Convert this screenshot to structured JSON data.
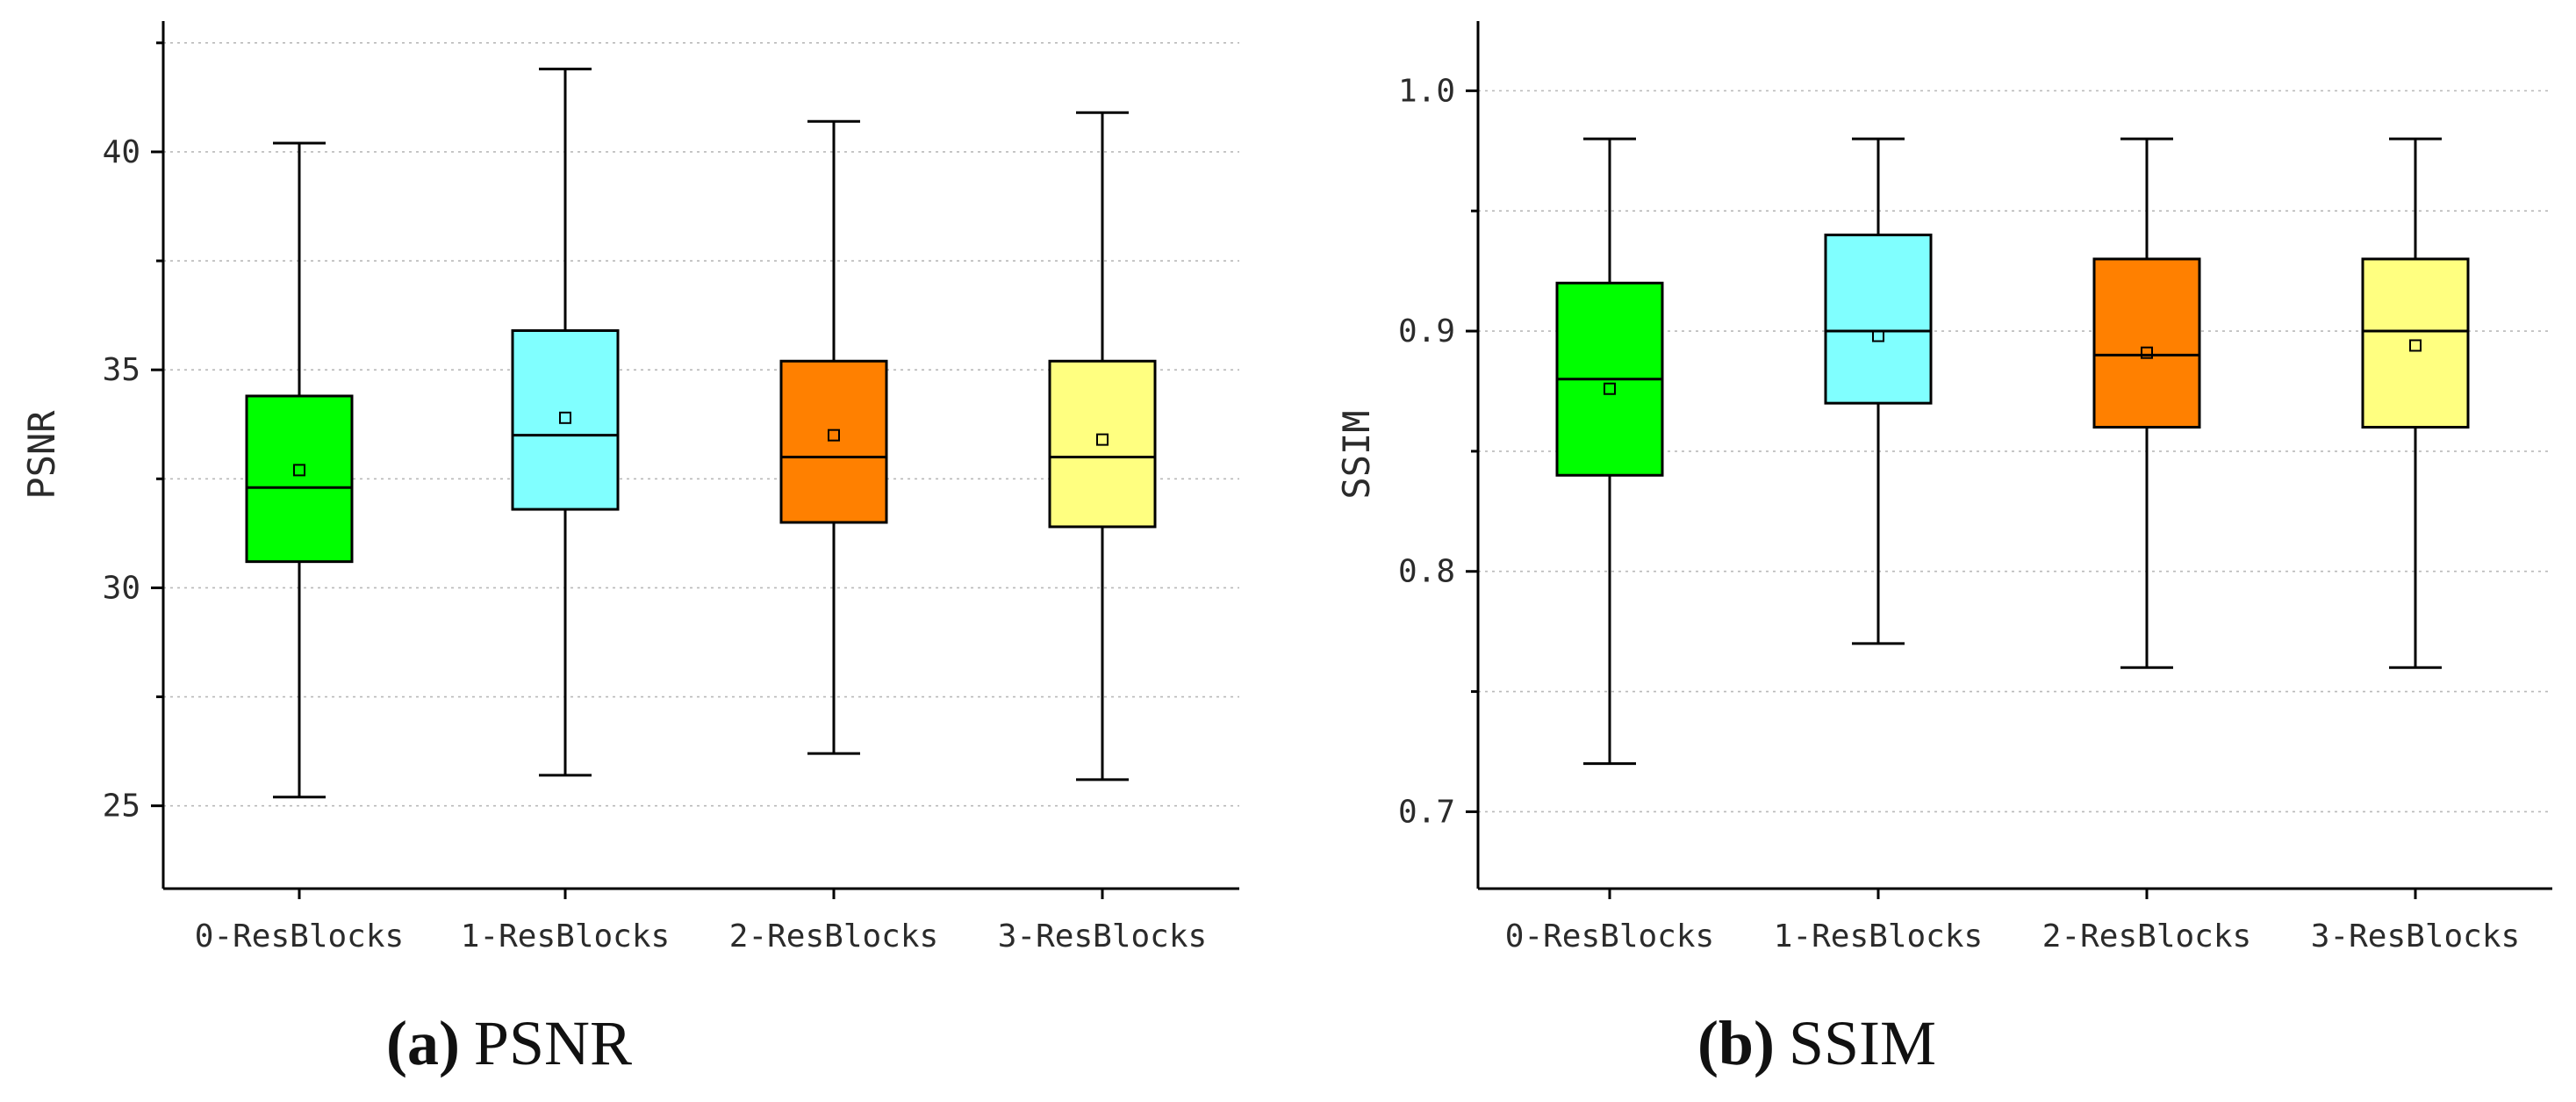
{
  "chart_data": [
    {
      "type": "box",
      "ylabel": "PSNR",
      "ylim": [
        23.1,
        43.0
      ],
      "yticks": [
        25,
        30,
        35,
        40
      ],
      "ytick_labels": [
        "25",
        "30",
        "35",
        "40"
      ],
      "ygrid": [
        27.5,
        32.5,
        37.5,
        42.5
      ],
      "categories": [
        "0-ResBlocks",
        "1-ResBlocks",
        "2-ResBlocks",
        "3-ResBlocks"
      ],
      "colors": [
        "#00ff00",
        "#80ffff",
        "#ff8000",
        "#ffff80"
      ],
      "boxes": [
        {
          "min": 25.2,
          "q1": 30.6,
          "median": 32.3,
          "q3": 34.4,
          "max": 40.2,
          "mean": 32.7
        },
        {
          "min": 25.7,
          "q1": 31.8,
          "median": 33.5,
          "q3": 35.9,
          "max": 41.9,
          "mean": 33.9
        },
        {
          "min": 26.2,
          "q1": 31.5,
          "median": 33.0,
          "q3": 35.2,
          "max": 40.7,
          "mean": 33.5
        },
        {
          "min": 25.6,
          "q1": 31.4,
          "median": 33.0,
          "q3": 35.2,
          "max": 40.9,
          "mean": 33.4
        }
      ],
      "caption_letter": "(a)",
      "caption_text": "PSNR"
    },
    {
      "type": "box",
      "ylabel": "SSIM",
      "ylim": [
        0.668,
        1.029
      ],
      "yticks": [
        0.7,
        0.8,
        0.9,
        1.0
      ],
      "ytick_labels": [
        "0.7",
        "0.8",
        "0.9",
        "1.0"
      ],
      "ygrid": [
        0.75,
        0.85,
        0.95
      ],
      "categories": [
        "0-ResBlocks",
        "1-ResBlocks",
        "2-ResBlocks",
        "3-ResBlocks"
      ],
      "colors": [
        "#00ff00",
        "#80ffff",
        "#ff8000",
        "#ffff80"
      ],
      "boxes": [
        {
          "min": 0.72,
          "q1": 0.84,
          "median": 0.88,
          "q3": 0.92,
          "max": 0.98,
          "mean": 0.876
        },
        {
          "min": 0.77,
          "q1": 0.87,
          "median": 0.9,
          "q3": 0.94,
          "max": 0.98,
          "mean": 0.898
        },
        {
          "min": 0.76,
          "q1": 0.86,
          "median": 0.89,
          "q3": 0.93,
          "max": 0.98,
          "mean": 0.891
        },
        {
          "min": 0.76,
          "q1": 0.86,
          "median": 0.9,
          "q3": 0.93,
          "max": 0.98,
          "mean": 0.894
        }
      ],
      "caption_letter": "(b)",
      "caption_text": "SSIM"
    }
  ]
}
